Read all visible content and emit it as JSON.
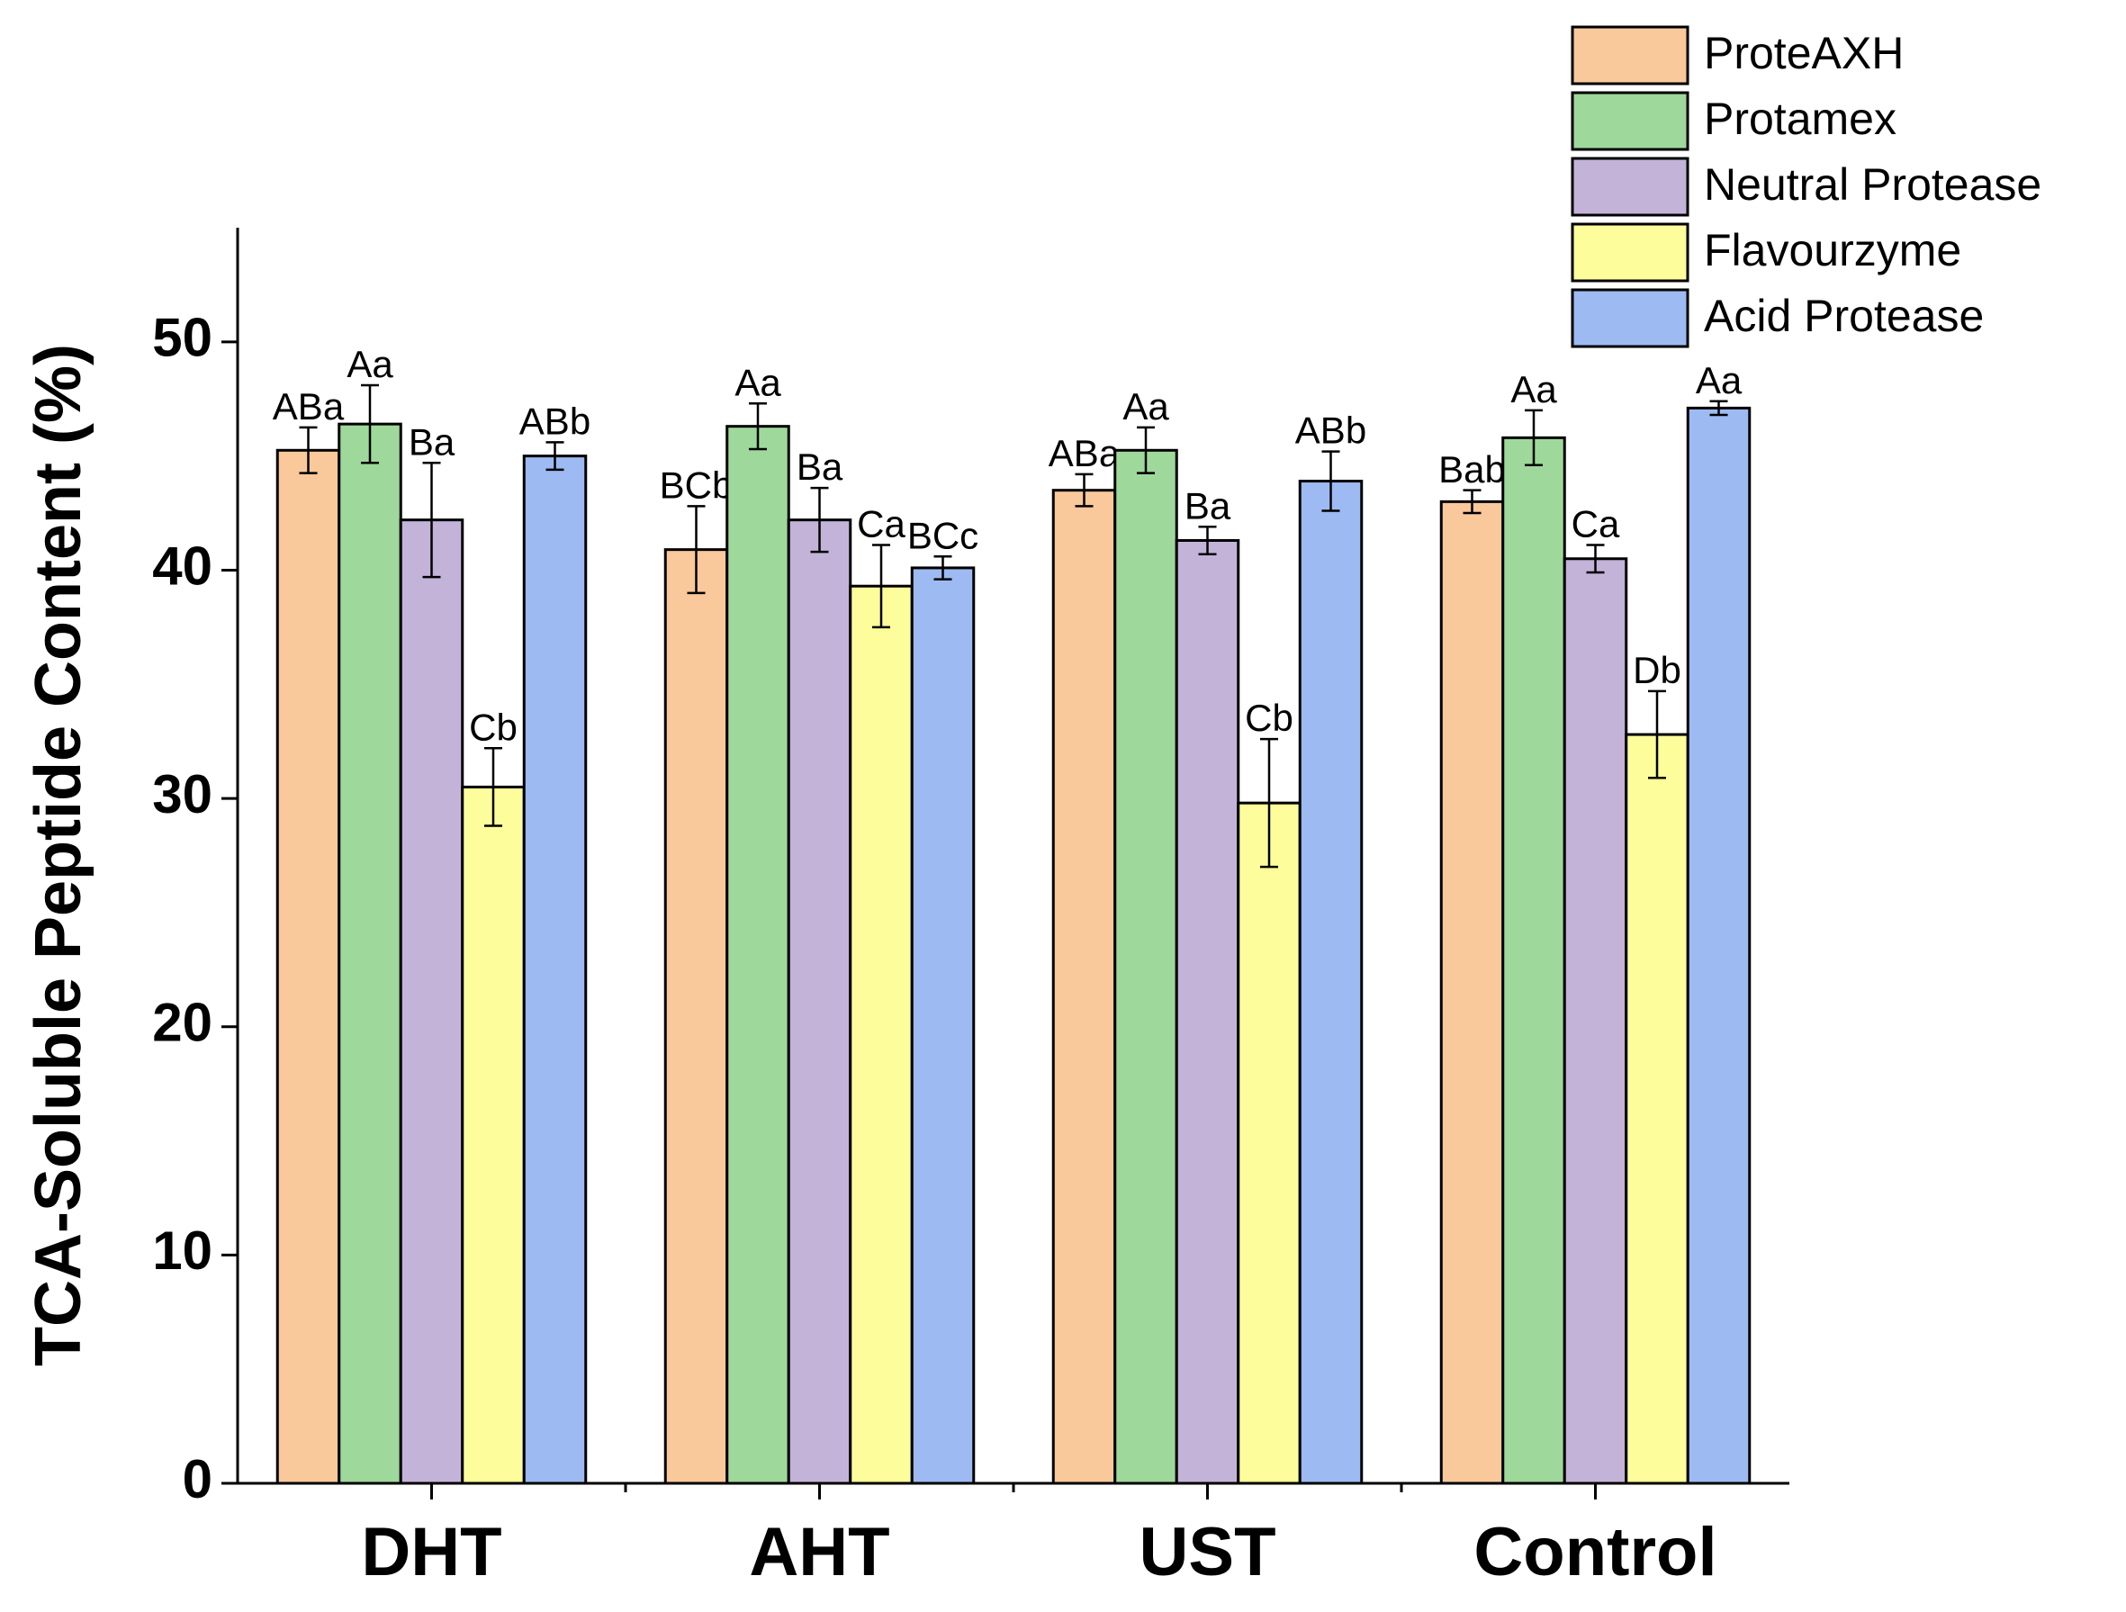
{
  "chart_data": {
    "type": "bar",
    "y_label": "TCA-Soluble Peptide Content (%)",
    "categories": [
      "DHT",
      "AHT",
      "UST",
      "Control"
    ],
    "ylim": [
      0,
      55
    ],
    "yticks": [
      0,
      10,
      20,
      30,
      40,
      50
    ],
    "legend": "top-right",
    "series": [
      {
        "name": "ProteAXH",
        "color": "#f9c89b",
        "values": [
          45.25,
          40.9,
          43.5,
          43.0
        ],
        "errors": [
          1.0,
          1.9,
          0.7,
          0.5
        ],
        "letters": [
          "ABa",
          "BCb",
          "ABa",
          "Bab"
        ]
      },
      {
        "name": "Protamex",
        "color": "#9fd89b",
        "values": [
          46.4,
          46.3,
          45.25,
          45.8
        ],
        "errors": [
          1.7,
          1.0,
          1.0,
          1.2
        ],
        "letters": [
          "Aa",
          "Aa",
          "Aa",
          "Aa"
        ]
      },
      {
        "name": "Neutral Protease",
        "color": "#c3b3d9",
        "values": [
          42.2,
          42.2,
          41.3,
          40.5
        ],
        "errors": [
          2.5,
          1.4,
          0.6,
          0.6
        ],
        "letters": [
          "Ba",
          "Ba",
          "Ba",
          "Ca"
        ]
      },
      {
        "name": "Flavourzyme",
        "color": "#fdfd9b",
        "values": [
          30.5,
          39.3,
          29.8,
          32.8
        ],
        "errors": [
          1.7,
          1.8,
          2.8,
          1.9
        ],
        "letters": [
          "Cb",
          "Ca",
          "Cb",
          "Db"
        ]
      },
      {
        "name": "Acid Protease",
        "color": "#9dbaf2",
        "values": [
          45.0,
          40.1,
          43.9,
          47.1
        ],
        "errors": [
          0.6,
          0.5,
          1.3,
          0.3
        ],
        "letters": [
          "ABb",
          "BCc",
          "ABb",
          "Aa"
        ]
      }
    ]
  }
}
